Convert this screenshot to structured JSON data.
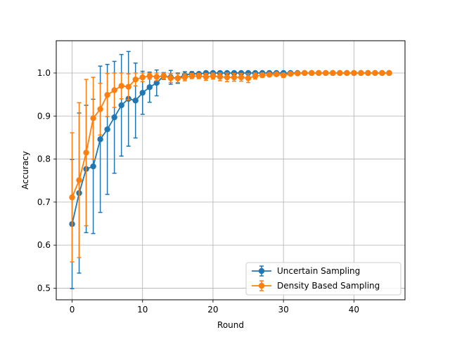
{
  "chart_data": {
    "type": "line",
    "title": "",
    "xlabel": "Round",
    "ylabel": "Accuracy",
    "xlim": [
      -2.25,
      47.25
    ],
    "ylim": [
      0.473,
      1.075
    ],
    "xticks": [
      0,
      10,
      20,
      30,
      40
    ],
    "yticks": [
      0.5,
      0.6,
      0.7,
      0.8,
      0.9,
      1.0
    ],
    "ytick_labels": [
      "0.5",
      "0.6",
      "0.7",
      "0.8",
      "0.9",
      "1.0"
    ],
    "grid": true,
    "legend_position": "lower-right",
    "error_bars": true,
    "series": [
      {
        "name": "Uncertain Sampling",
        "color": "#1f77b4",
        "x": [
          0,
          1,
          2,
          3,
          4,
          5,
          6,
          7,
          8,
          9,
          10,
          11,
          12,
          13,
          14,
          15,
          16,
          17,
          18,
          19,
          20,
          21,
          22,
          23,
          24,
          25,
          26,
          27,
          28,
          29,
          30,
          31,
          32,
          33,
          34,
          35,
          36,
          37,
          38,
          39,
          40,
          41,
          42,
          43,
          44,
          45
        ],
        "y": [
          0.649,
          0.721,
          0.777,
          0.783,
          0.846,
          0.869,
          0.897,
          0.925,
          0.94,
          0.936,
          0.954,
          0.967,
          0.977,
          0.993,
          0.99,
          0.988,
          0.995,
          0.998,
          0.998,
          1.0,
          1.0,
          1.0,
          1.0,
          1.0,
          1.0,
          1.0,
          1.0,
          1.0,
          1.0,
          1.0,
          1.0,
          1.0,
          1.0,
          1.0,
          1.0,
          1.0,
          1.0,
          1.0,
          1.0,
          1.0,
          1.0,
          1.0,
          1.0,
          1.0,
          1.0,
          1.0
        ],
        "err": [
          0.15,
          0.186,
          0.148,
          0.156,
          0.17,
          0.151,
          0.13,
          0.118,
          0.11,
          0.087,
          0.05,
          0.035,
          0.03,
          0.008,
          0.016,
          0.012,
          0.008,
          0.005,
          0.004,
          0.002,
          0.001,
          0,
          0,
          0,
          0,
          0,
          0,
          0,
          0,
          0,
          0,
          0,
          0,
          0,
          0,
          0,
          0,
          0,
          0,
          0,
          0,
          0,
          0,
          0,
          0,
          0
        ]
      },
      {
        "name": "Density Based Sampling",
        "color": "#ff7f0e",
        "x": [
          0,
          1,
          2,
          3,
          4,
          5,
          6,
          7,
          8,
          9,
          10,
          11,
          12,
          13,
          14,
          15,
          16,
          17,
          18,
          19,
          20,
          21,
          22,
          23,
          24,
          25,
          26,
          27,
          28,
          29,
          30,
          31,
          32,
          33,
          34,
          35,
          36,
          37,
          38,
          39,
          40,
          41,
          42,
          43,
          44,
          45
        ],
        "y": [
          0.711,
          0.751,
          0.815,
          0.895,
          0.916,
          0.949,
          0.96,
          0.97,
          0.968,
          0.985,
          0.99,
          0.993,
          0.991,
          0.993,
          0.988,
          0.988,
          0.99,
          0.993,
          0.993,
          0.991,
          0.993,
          0.991,
          0.99,
          0.99,
          0.99,
          0.988,
          0.993,
          0.995,
          0.996,
          0.997,
          0.995,
          0.998,
          0.999,
          1.0,
          1.0,
          1.0,
          1.0,
          1.0,
          1.0,
          1.0,
          1.0,
          1.0,
          1.0,
          1.0,
          1.0,
          1.0
        ],
        "err": [
          0.15,
          0.18,
          0.17,
          0.095,
          0.06,
          0.05,
          0.04,
          0.03,
          0.03,
          0.015,
          0.01,
          0.007,
          0.009,
          0.007,
          0.01,
          0.01,
          0.008,
          0.006,
          0.006,
          0.008,
          0.007,
          0.009,
          0.01,
          0.009,
          0.009,
          0.01,
          0.007,
          0.005,
          0.004,
          0.003,
          0.005,
          0.002,
          0.001,
          0,
          0,
          0,
          0,
          0,
          0,
          0,
          0,
          0,
          0,
          0,
          0,
          0
        ]
      }
    ]
  }
}
